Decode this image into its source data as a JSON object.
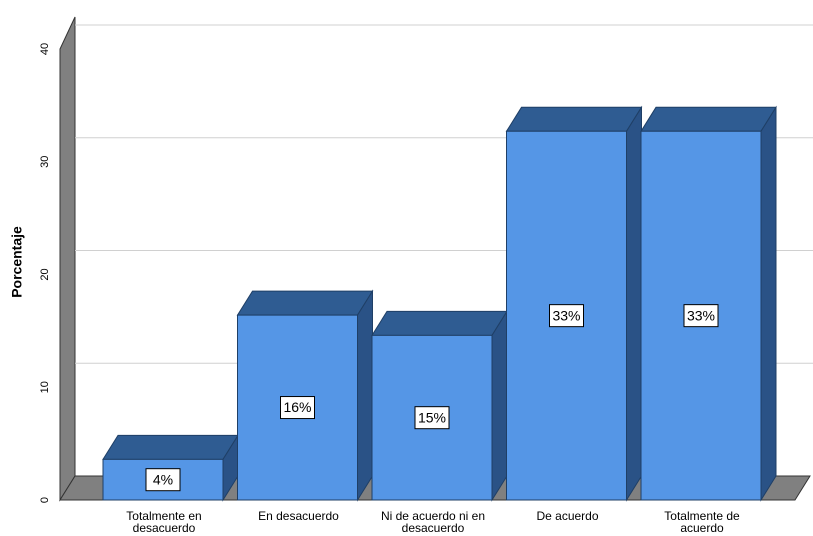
{
  "chart_data": {
    "type": "bar3d",
    "ylabel": "Porcentaje",
    "categories": [
      "Totalmente en desacuerdo",
      "En desacuerdo",
      "Ni de acuerdo ni en desacuerdo",
      "De acuerdo",
      "Totalmente de acuerdo"
    ],
    "values": [
      3.6,
      16.4,
      14.6,
      32.7,
      32.7
    ],
    "value_labels": [
      "4%",
      "16%",
      "15%",
      "33%",
      "33%"
    ],
    "color": "#5596e6",
    "ylim": [
      0,
      40
    ],
    "yticks": [
      0,
      10,
      20,
      30,
      40
    ],
    "grid": true
  }
}
